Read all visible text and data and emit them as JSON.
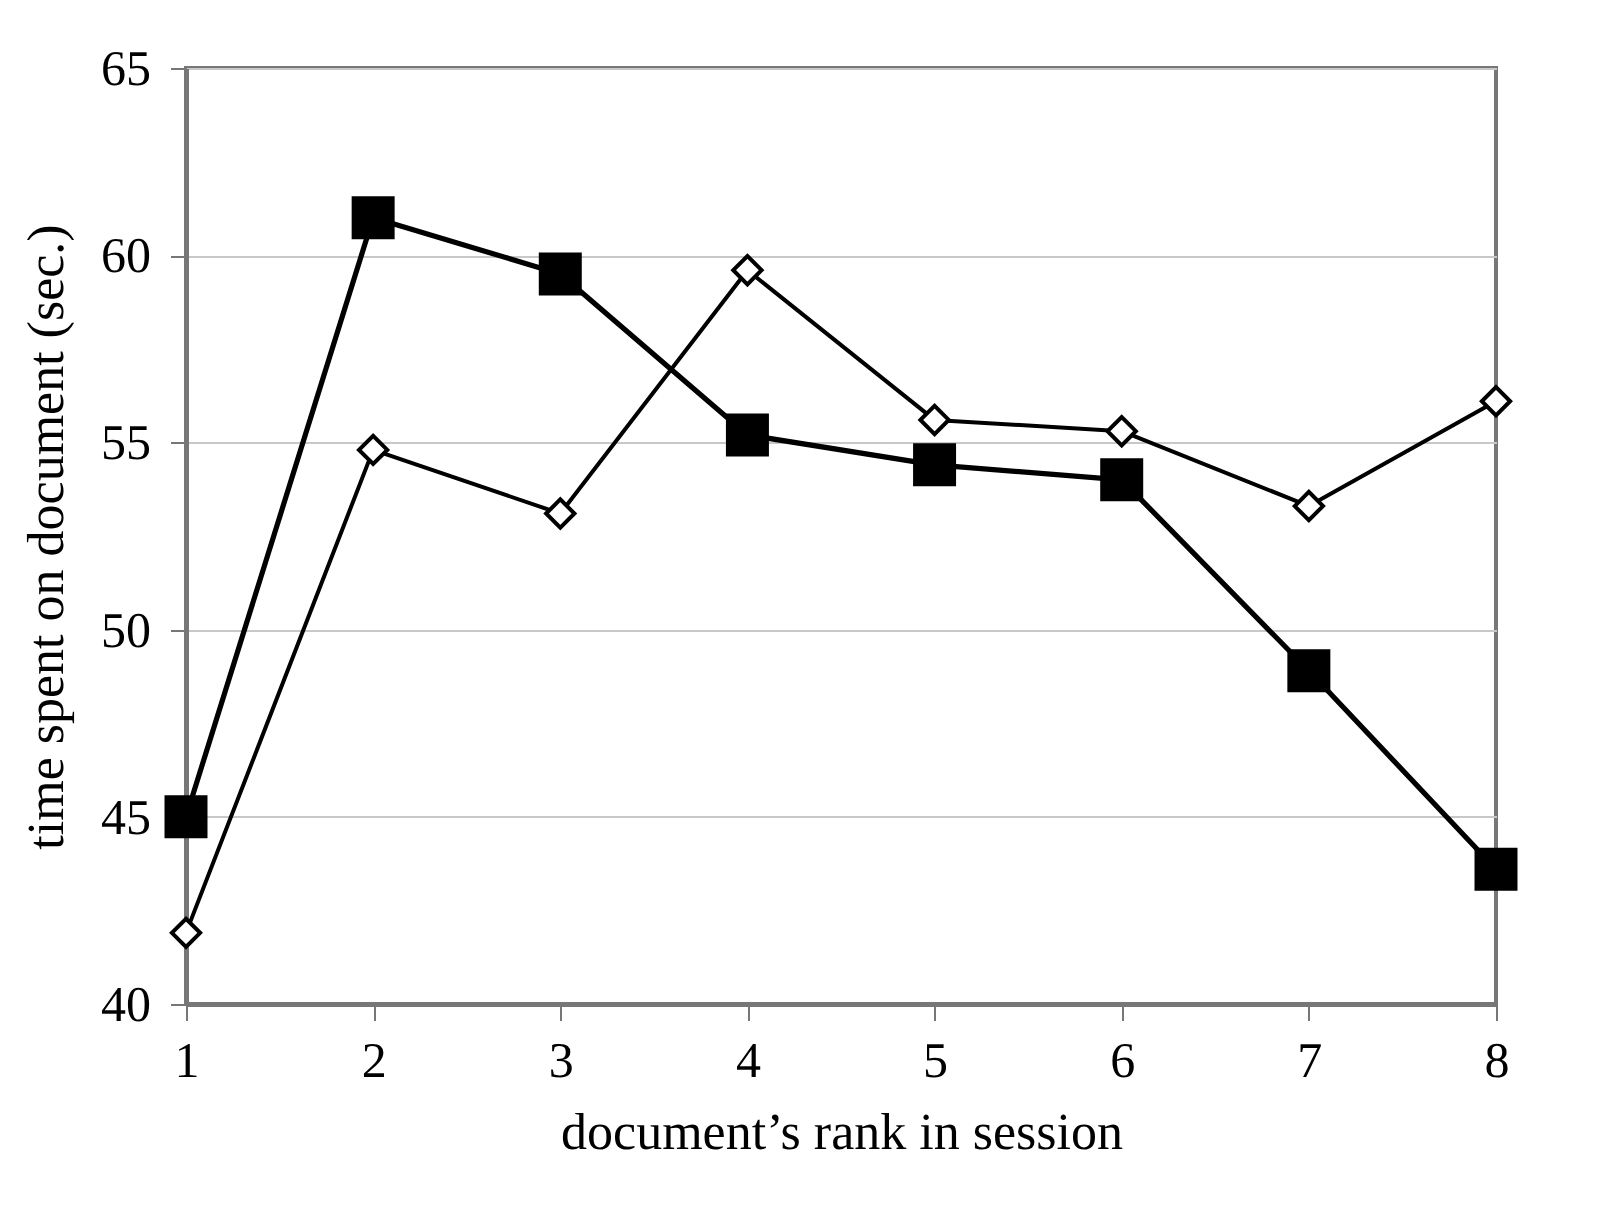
{
  "chart_data": {
    "type": "line",
    "xlabel": "document’s rank in session",
    "ylabel": "time spent on document (sec.)",
    "x": [
      1,
      2,
      3,
      4,
      5,
      6,
      7,
      8
    ],
    "xlim": [
      1,
      8
    ],
    "xticks": [
      1,
      2,
      3,
      4,
      5,
      6,
      7,
      8
    ],
    "ylim": [
      40,
      65
    ],
    "yticks": [
      40,
      45,
      50,
      55,
      60,
      65
    ],
    "grid": "y",
    "series": [
      {
        "color": "#000000",
        "marker": "diamond",
        "values": [
          41.9,
          54.8,
          53.1,
          59.6,
          55.6,
          55.3,
          53.3,
          56.1
        ]
      },
      {
        "color": "#000000",
        "marker": "square",
        "values": [
          45.0,
          61.0,
          59.5,
          55.2,
          54.4,
          54.0,
          48.9,
          43.6
        ]
      }
    ]
  }
}
